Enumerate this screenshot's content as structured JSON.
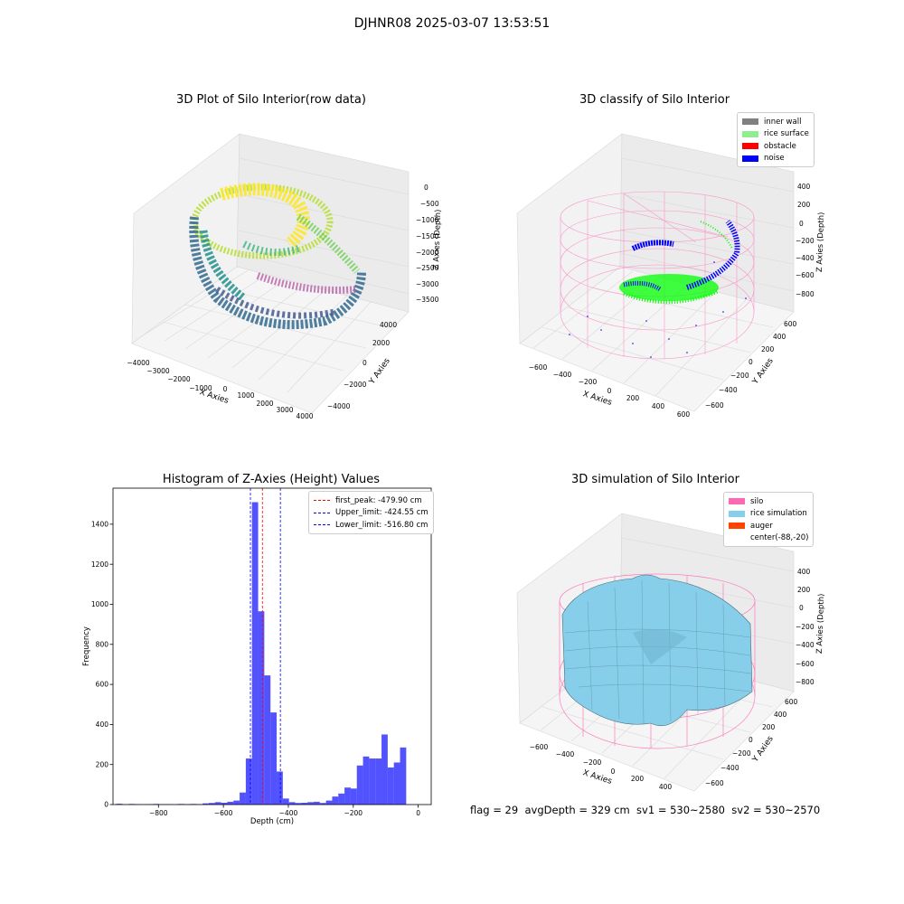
{
  "figure": {
    "suptitle": "DJHNR08 2025-03-07 13:53:51",
    "footer": "flag = 29  avgDepth = 329 cm  sv1 = 530~2580  sv2 = 530~2570"
  },
  "chart_data": [
    {
      "type": "scatter",
      "title": "3D Plot of Silo Interior(row data)",
      "xlabel": "X Axies",
      "ylabel": "Y Axies",
      "zlabel": "Z Axies (Depth)",
      "x_ticks": [
        "−4000",
        "−3000",
        "−2000",
        "−1000",
        "0",
        "1000",
        "2000",
        "3000",
        "4000"
      ],
      "y_ticks": [
        "−4000",
        "−2000",
        "0",
        "2000",
        "4000"
      ],
      "z_ticks": [
        "0",
        "−500",
        "−1000",
        "−1500",
        "−2000",
        "−2500",
        "−3000",
        "−3500"
      ],
      "xlim": [
        -4000,
        4000
      ],
      "ylim": [
        -4000,
        4000
      ],
      "zlim": [
        -3700,
        200
      ],
      "colormap": "viridis"
    },
    {
      "type": "scatter",
      "title": "3D classify of Silo Interior",
      "xlabel": "X Axies",
      "ylabel": "Y Axies",
      "zlabel": "Z Axies (Depth)",
      "x_ticks": [
        "−600",
        "−400",
        "−200",
        "0",
        "200",
        "400",
        "600"
      ],
      "y_ticks": [
        "−600",
        "−400",
        "−200",
        "0",
        "200",
        "400",
        "600"
      ],
      "z_ticks": [
        "400",
        "200",
        "0",
        "−200",
        "−400",
        "−600",
        "−800"
      ],
      "legend": {
        "position": "upper-right",
        "entries": [
          {
            "label": "inner wall",
            "color": "#808080"
          },
          {
            "label": "rice surface",
            "color": "#90ee90"
          },
          {
            "label": "obstacle",
            "color": "#ff0000"
          },
          {
            "label": "noise",
            "color": "#0000ff"
          }
        ]
      }
    },
    {
      "type": "bar",
      "title": "Histogram of Z-Axies (Height) Values",
      "xlabel": "Depth (cm)",
      "ylabel": "Frequency",
      "xlim": [
        -940,
        40
      ],
      "ylim": [
        0,
        1580
      ],
      "x_ticks": [
        -800,
        -600,
        -400,
        -200,
        0
      ],
      "y_ticks": [
        0,
        200,
        400,
        600,
        800,
        1000,
        1200,
        1400
      ],
      "bin_width": 19,
      "bins": [
        {
          "start": -930,
          "value": 4
        },
        {
          "start": -911,
          "value": 1
        },
        {
          "start": -892,
          "value": 3
        },
        {
          "start": -873,
          "value": 2
        },
        {
          "start": -854,
          "value": 1
        },
        {
          "start": -835,
          "value": 2
        },
        {
          "start": -816,
          "value": 3
        },
        {
          "start": -797,
          "value": 2
        },
        {
          "start": -778,
          "value": 2
        },
        {
          "start": -759,
          "value": 1
        },
        {
          "start": -740,
          "value": 3
        },
        {
          "start": -721,
          "value": 2
        },
        {
          "start": -702,
          "value": 3
        },
        {
          "start": -683,
          "value": 2
        },
        {
          "start": -664,
          "value": 6
        },
        {
          "start": -645,
          "value": 8
        },
        {
          "start": -626,
          "value": 12
        },
        {
          "start": -607,
          "value": 9
        },
        {
          "start": -588,
          "value": 14
        },
        {
          "start": -569,
          "value": 20
        },
        {
          "start": -550,
          "value": 60
        },
        {
          "start": -531,
          "value": 230
        },
        {
          "start": -512,
          "value": 1510
        },
        {
          "start": -493,
          "value": 965
        },
        {
          "start": -474,
          "value": 645
        },
        {
          "start": -455,
          "value": 460
        },
        {
          "start": -436,
          "value": 165
        },
        {
          "start": -417,
          "value": 30
        },
        {
          "start": -398,
          "value": 12
        },
        {
          "start": -379,
          "value": 8
        },
        {
          "start": -360,
          "value": 9
        },
        {
          "start": -341,
          "value": 12
        },
        {
          "start": -322,
          "value": 14
        },
        {
          "start": -303,
          "value": 8
        },
        {
          "start": -284,
          "value": 20
        },
        {
          "start": -265,
          "value": 40
        },
        {
          "start": -246,
          "value": 55
        },
        {
          "start": -227,
          "value": 85
        },
        {
          "start": -208,
          "value": 80
        },
        {
          "start": -189,
          "value": 195
        },
        {
          "start": -170,
          "value": 240
        },
        {
          "start": -151,
          "value": 230
        },
        {
          "start": -132,
          "value": 230
        },
        {
          "start": -113,
          "value": 350
        },
        {
          "start": -94,
          "value": 185
        },
        {
          "start": -75,
          "value": 210
        },
        {
          "start": -56,
          "value": 285
        }
      ],
      "bar_color": "#0000ff",
      "vlines": [
        {
          "label": "first_peak: -479.90 cm",
          "x": -479.9,
          "color": "#ff0000"
        },
        {
          "label": "Upper_limit: -424.55 cm",
          "x": -424.55,
          "color": "#0000ff"
        },
        {
          "label": "Lower_limit: -516.80 cm",
          "x": -516.8,
          "color": "#0000ff"
        }
      ],
      "legend": {
        "position": "upper-right"
      }
    },
    {
      "type": "surface",
      "title": "3D simulation of Silo Interior",
      "xlabel": "X Axies",
      "ylabel": "Y Axies",
      "zlabel": "Z Axies (Depth)",
      "x_ticks": [
        "−600",
        "−400",
        "−200",
        "0",
        "200",
        "400"
      ],
      "y_ticks": [
        "−600",
        "−400",
        "−200",
        "0",
        "200",
        "400",
        "600"
      ],
      "z_ticks": [
        "400",
        "200",
        "0",
        "−200",
        "−400",
        "−600",
        "−800"
      ],
      "legend": {
        "position": "upper-right",
        "entries": [
          {
            "label": "silo",
            "color": "#ff69b4"
          },
          {
            "label": "rice simulation",
            "color": "#87ceeb"
          },
          {
            "label": "auger",
            "color": "#ff4500"
          },
          {
            "label": "center(-88,-20)",
            "color": "#ffffff"
          }
        ]
      }
    }
  ]
}
